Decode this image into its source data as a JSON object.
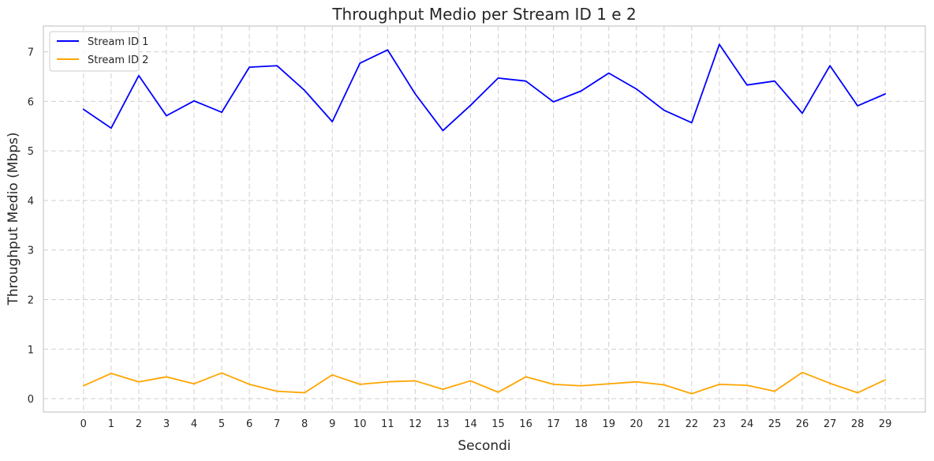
{
  "chart_data": {
    "type": "line",
    "title": "Throughput Medio per Stream ID 1 e 2",
    "xlabel": "Secondi",
    "ylabel": "Throughput Medio (Mbps)",
    "x": [
      0,
      1,
      2,
      3,
      4,
      5,
      6,
      7,
      8,
      9,
      10,
      11,
      12,
      13,
      14,
      15,
      16,
      17,
      18,
      19,
      20,
      21,
      22,
      23,
      24,
      25,
      26,
      27,
      28,
      29
    ],
    "xlim": [
      -1.45,
      30.45
    ],
    "ylim": [
      -0.27,
      7.52
    ],
    "yticks": [
      0,
      1,
      2,
      3,
      4,
      5,
      6,
      7
    ],
    "grid": true,
    "legend_position": "top-left",
    "series": [
      {
        "name": "Stream ID 1",
        "color": "#0000ff",
        "values": [
          5.84,
          5.46,
          6.52,
          5.71,
          6.01,
          5.78,
          6.69,
          6.72,
          6.22,
          5.59,
          6.77,
          7.04,
          6.15,
          5.41,
          5.92,
          6.47,
          6.41,
          5.99,
          6.21,
          6.57,
          6.25,
          5.82,
          5.57,
          7.15,
          6.33,
          6.41,
          5.76,
          6.72,
          5.91,
          6.15
        ]
      },
      {
        "name": "Stream ID 2",
        "color": "#ffa500",
        "values": [
          0.26,
          0.51,
          0.34,
          0.44,
          0.3,
          0.52,
          0.29,
          0.15,
          0.12,
          0.48,
          0.29,
          0.34,
          0.36,
          0.19,
          0.36,
          0.13,
          0.44,
          0.29,
          0.26,
          0.3,
          0.34,
          0.28,
          0.1,
          0.29,
          0.27,
          0.15,
          0.53,
          0.31,
          0.12,
          0.38
        ]
      }
    ]
  }
}
